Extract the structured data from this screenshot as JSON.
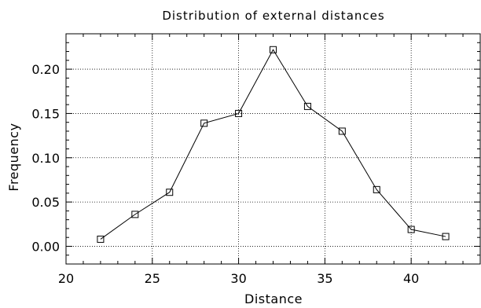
{
  "chart_data": {
    "type": "line",
    "title": "Distribution of external distances",
    "xlabel": "Distance",
    "ylabel": "Frequency",
    "xlim": [
      20,
      44
    ],
    "ylim": [
      -0.02,
      0.24
    ],
    "xticks": [
      20,
      25,
      30,
      35,
      40
    ],
    "xtick_labels": [
      "20",
      "25",
      "30",
      "35",
      "40"
    ],
    "yticks": [
      0.0,
      0.05,
      0.1,
      0.15,
      0.2
    ],
    "ytick_labels": [
      "0.00",
      "0.05",
      "0.10",
      "0.15",
      "0.20"
    ],
    "grid": true,
    "marker": "square",
    "series": [
      {
        "x": [
          22,
          24,
          26,
          28,
          30,
          32,
          34,
          36,
          38,
          40,
          42
        ],
        "y": [
          0.008,
          0.036,
          0.061,
          0.139,
          0.15,
          0.222,
          0.158,
          0.13,
          0.064,
          0.019,
          0.011
        ]
      }
    ]
  }
}
